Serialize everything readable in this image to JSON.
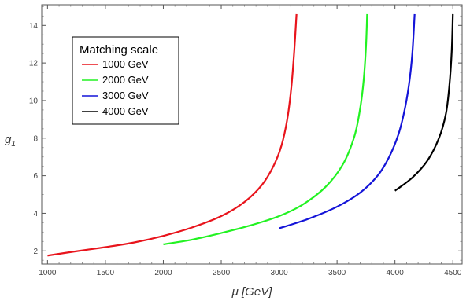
{
  "chart_data": {
    "type": "line",
    "xlabel": "μ [GeV]",
    "ylabel": "g",
    "ylabel_subscript": "1",
    "xlim": [
      950,
      4580
    ],
    "ylim": [
      1.3,
      15.1
    ],
    "x_ticks": [
      1000,
      1500,
      2000,
      2500,
      3000,
      3500,
      4000,
      4500
    ],
    "y_ticks": [
      2,
      4,
      6,
      8,
      10,
      12,
      14
    ],
    "grid": false,
    "legend": {
      "title": "Matching scale",
      "position": "top-left",
      "frame": true
    },
    "series": [
      {
        "name": "1000 GeV",
        "color": "#e8141c",
        "points": [
          [
            1000,
            1.75
          ],
          [
            1250,
            1.98
          ],
          [
            1500,
            2.2
          ],
          [
            1750,
            2.45
          ],
          [
            2000,
            2.8
          ],
          [
            2250,
            3.25
          ],
          [
            2500,
            3.85
          ],
          [
            2700,
            4.6
          ],
          [
            2850,
            5.5
          ],
          [
            2950,
            6.5
          ],
          [
            3020,
            7.6
          ],
          [
            3070,
            9.0
          ],
          [
            3105,
            10.7
          ],
          [
            3130,
            12.6
          ],
          [
            3150,
            14.6
          ]
        ]
      },
      {
        "name": "2000 GeV",
        "color": "#22f222",
        "points": [
          [
            2000,
            2.35
          ],
          [
            2250,
            2.6
          ],
          [
            2500,
            2.95
          ],
          [
            2750,
            3.35
          ],
          [
            3000,
            3.85
          ],
          [
            3200,
            4.45
          ],
          [
            3400,
            5.4
          ],
          [
            3550,
            6.6
          ],
          [
            3650,
            8.1
          ],
          [
            3700,
            9.6
          ],
          [
            3730,
            11.1
          ],
          [
            3750,
            12.9
          ],
          [
            3760,
            14.6
          ]
        ]
      },
      {
        "name": "3000 GeV",
        "color": "#1414d8",
        "points": [
          [
            3000,
            3.2
          ],
          [
            3250,
            3.7
          ],
          [
            3500,
            4.35
          ],
          [
            3700,
            5.1
          ],
          [
            3850,
            6.0
          ],
          [
            3950,
            7.0
          ],
          [
            4030,
            8.2
          ],
          [
            4080,
            9.4
          ],
          [
            4120,
            10.8
          ],
          [
            4150,
            12.5
          ],
          [
            4170,
            14.6
          ]
        ]
      },
      {
        "name": "4000 GeV",
        "color": "#000000",
        "points": [
          [
            4000,
            5.2
          ],
          [
            4150,
            5.9
          ],
          [
            4280,
            6.8
          ],
          [
            4380,
            8.0
          ],
          [
            4440,
            9.3
          ],
          [
            4470,
            10.8
          ],
          [
            4490,
            12.6
          ],
          [
            4500,
            14.6
          ]
        ]
      }
    ]
  }
}
